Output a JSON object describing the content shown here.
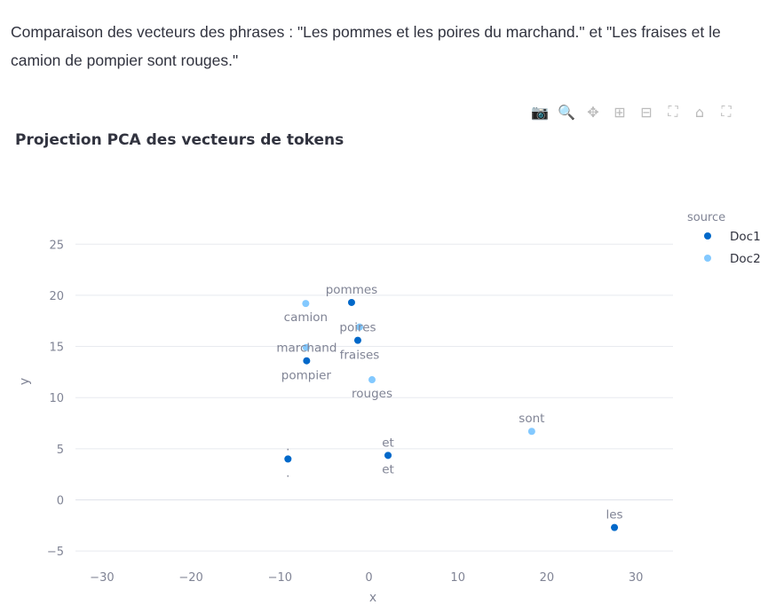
{
  "description": "Comparaison des vecteurs des phrases : \"Les pommes et les poires du marchand.\" et \"Les fraises et le camion de pompier sont rouges.\"",
  "toolbar": [
    {
      "icon": "camera-icon",
      "glyph": "📷"
    },
    {
      "icon": "zoom-icon",
      "glyph": "🔍"
    },
    {
      "icon": "pan-icon",
      "glyph": "✥"
    },
    {
      "icon": "zoom-in-icon",
      "glyph": "⊞"
    },
    {
      "icon": "zoom-out-icon",
      "glyph": "⊟"
    },
    {
      "icon": "autoscale-icon",
      "glyph": "⛶"
    },
    {
      "icon": "home-icon",
      "glyph": "⌂"
    },
    {
      "icon": "fullscreen-icon",
      "glyph": "⛶"
    }
  ],
  "chart_data": {
    "type": "scatter",
    "title": "Projection PCA des vecteurs de tokens",
    "xlabel": "x",
    "ylabel": "y",
    "xlim": [
      -33,
      34.2
    ],
    "ylim": [
      -5.3,
      27.5
    ],
    "xticks": [
      -30,
      -20,
      -10,
      0,
      10,
      20,
      30
    ],
    "yticks": [
      -5,
      0,
      5,
      10,
      15,
      20,
      25
    ],
    "grid": true,
    "legend": {
      "title": "source",
      "placement": "top-right"
    },
    "series": [
      {
        "name": "Doc1",
        "color": "#0068c9",
        "points": [
          {
            "label": "les",
            "x": 27.6,
            "y": -2.7
          },
          {
            "label": "pommes",
            "x": -1.95,
            "y": 19.3
          },
          {
            "label": "et",
            "x": 2.15,
            "y": 4.35
          },
          {
            "label": "poires",
            "x": -1.25,
            "y": 15.6
          },
          {
            "label": "marchand",
            "x": -7.0,
            "y": 13.6
          },
          {
            "label": ".",
            "x": -9.1,
            "y": 4.0
          }
        ]
      },
      {
        "name": "Doc2",
        "color": "#83c9ff",
        "points": [
          {
            "label": "fraises",
            "x": -1.05,
            "y": 16.9
          },
          {
            "label": "et",
            "x": 2.15,
            "y": 4.35
          },
          {
            "label": "camion",
            "x": -7.1,
            "y": 19.2
          },
          {
            "label": "pompier",
            "x": -7.05,
            "y": 14.9
          },
          {
            "label": "sont",
            "x": 18.3,
            "y": 6.7
          },
          {
            "label": "rouges",
            "x": 0.35,
            "y": 11.75
          },
          {
            "label": ".",
            "x": -9.1,
            "y": 4.0
          }
        ]
      }
    ]
  }
}
